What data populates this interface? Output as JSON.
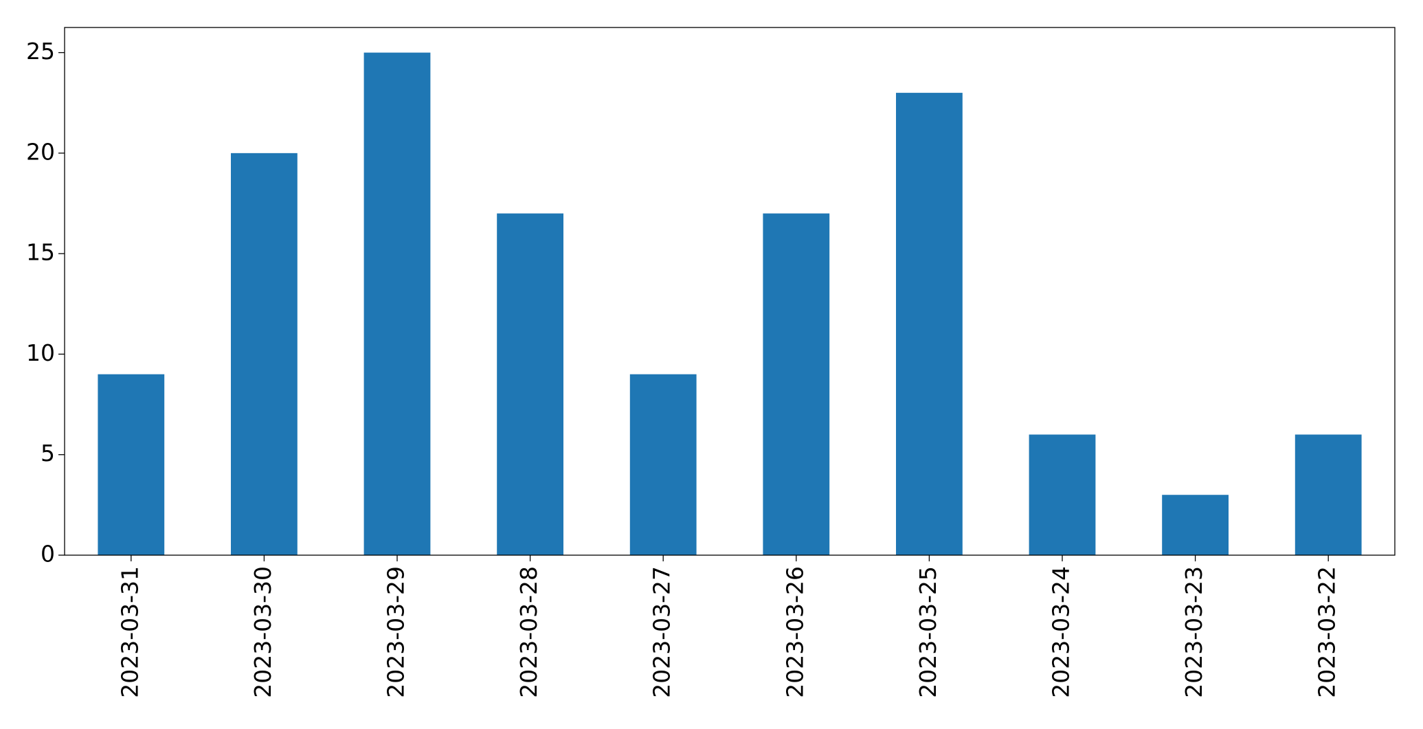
{
  "chart_data": {
    "type": "bar",
    "categories": [
      "2023-03-31",
      "2023-03-30",
      "2023-03-29",
      "2023-03-28",
      "2023-03-27",
      "2023-03-26",
      "2023-03-25",
      "2023-03-24",
      "2023-03-23",
      "2023-03-22"
    ],
    "values": [
      9,
      20,
      25,
      17,
      9,
      17,
      23,
      6,
      3,
      6
    ],
    "color": "#1f77b4",
    "ylim": [
      0,
      26.25
    ],
    "yticks": [
      0,
      5,
      10,
      15,
      20,
      25
    ],
    "grid": false
  }
}
